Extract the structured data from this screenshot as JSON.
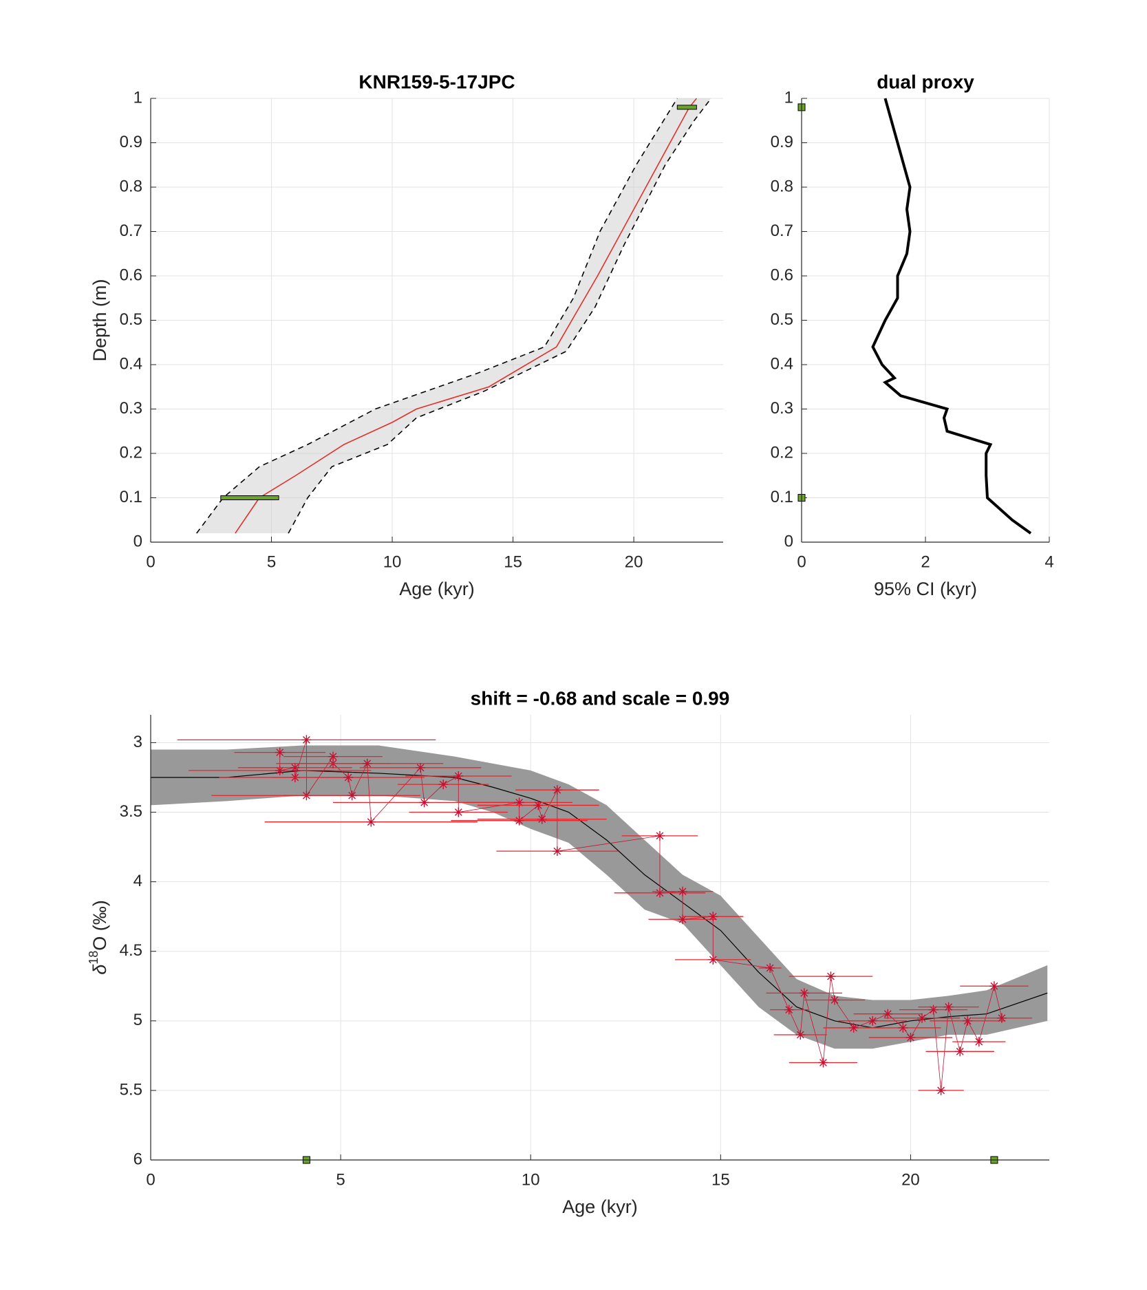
{
  "chart_data": [
    {
      "type": "line",
      "title": "KNR159-5-17JPC",
      "x_label": "Age (kyr)",
      "y_label": "Depth (m)",
      "xlim": [
        0,
        23.7
      ],
      "xticks": [
        0,
        5,
        10,
        15,
        20
      ],
      "ylim": [
        0,
        1
      ],
      "yticks": [
        0,
        0.1,
        0.2,
        0.3,
        0.4,
        0.5,
        0.6,
        0.7,
        0.8,
        0.9,
        1
      ],
      "grid": true,
      "band_color": "#c8c8c8",
      "series": [
        {
          "color": "#000000",
          "dashed": true,
          "x": [
            1.9,
            3,
            4.5,
            6.5,
            9.3,
            13.5,
            16.3,
            17.5,
            18.6,
            20.1,
            21.8
          ],
          "y": [
            0.02,
            0.1,
            0.17,
            0.22,
            0.3,
            0.38,
            0.44,
            0.55,
            0.7,
            0.85,
            1
          ]
        },
        {
          "color": "#000000",
          "dashed": true,
          "x": [
            5.7,
            6.5,
            7.5,
            9.8,
            11,
            13.8,
            17.2,
            18.4,
            19.6,
            21.3,
            22.5,
            23.2
          ],
          "y": [
            0.02,
            0.1,
            0.17,
            0.22,
            0.28,
            0.34,
            0.43,
            0.53,
            0.67,
            0.85,
            0.95,
            1
          ]
        },
        {
          "color": "#e0302a",
          "dashed": false,
          "x": [
            3.5,
            4.5,
            6,
            8,
            10,
            11,
            14,
            16.8,
            18.5,
            20,
            21.5,
            22.3,
            22.6
          ],
          "y": [
            0.02,
            0.1,
            0.15,
            0.22,
            0.27,
            0.3,
            0.35,
            0.44,
            0.6,
            0.75,
            0.9,
            0.98,
            1
          ]
        }
      ],
      "dates": {
        "color": "#6aa329",
        "x": [
          4.1,
          22.2
        ],
        "y": [
          0.1,
          0.98
        ],
        "xerr": [
          1.2,
          0.4
        ]
      }
    },
    {
      "type": "line",
      "title": "dual proxy",
      "x_label": "95% CI (kyr)",
      "xlim": [
        0,
        4
      ],
      "xticks": [
        0,
        2,
        4
      ],
      "ylim": [
        0,
        1
      ],
      "yticks": [
        0,
        0.1,
        0.2,
        0.3,
        0.4,
        0.5,
        0.6,
        0.7,
        0.8,
        0.9,
        1
      ],
      "grid": true,
      "series": [
        {
          "color": "#000000",
          "dashed": false,
          "width": 4,
          "x": [
            3.7,
            3.4,
            3.0,
            2.98,
            2.98,
            3.05,
            2.35,
            2.3,
            2.35,
            1.6,
            1.35,
            1.5,
            1.3,
            1.15,
            1.35,
            1.55,
            1.55,
            1.7,
            1.75,
            1.7,
            1.75,
            1.65,
            1.55,
            1.45,
            1.35
          ],
          "y": [
            0.02,
            0.05,
            0.1,
            0.15,
            0.2,
            0.22,
            0.25,
            0.28,
            0.3,
            0.33,
            0.36,
            0.37,
            0.4,
            0.44,
            0.5,
            0.55,
            0.6,
            0.65,
            0.7,
            0.75,
            0.8,
            0.85,
            0.9,
            0.95,
            1.0
          ]
        }
      ],
      "dates": {
        "color": "#6aa329",
        "x": [
          0,
          0
        ],
        "y": [
          0.1,
          0.98
        ]
      }
    },
    {
      "type": "line",
      "title": "shift = -0.68 and scale = 0.99",
      "x_label": "Age (kyr)",
      "y_label": [
        "δ",
        "18",
        "O (‰)"
      ],
      "xlim": [
        0,
        23.65
      ],
      "xticks": [
        0,
        5,
        10,
        15,
        20
      ],
      "ylim": [
        2.8,
        6
      ],
      "yticks": [
        3,
        3.5,
        4,
        4.5,
        5,
        5.5,
        6
      ],
      "y_reversed": true,
      "grid": true,
      "band": {
        "color": "#999999",
        "x": [
          0,
          2,
          4,
          6,
          8,
          9,
          10,
          11,
          12,
          13,
          14,
          15,
          16,
          17,
          18,
          19,
          20,
          21,
          22,
          23.6
        ],
        "lower": [
          3.05,
          3.05,
          3.02,
          3.02,
          3.1,
          3.15,
          3.2,
          3.3,
          3.45,
          3.7,
          3.95,
          4.1,
          4.4,
          4.7,
          4.82,
          4.85,
          4.85,
          4.82,
          4.78,
          4.6
        ],
        "upper": [
          3.45,
          3.42,
          3.38,
          3.38,
          3.42,
          3.5,
          3.62,
          3.72,
          3.95,
          4.2,
          4.3,
          4.6,
          4.9,
          5.1,
          5.2,
          5.2,
          5.15,
          5.1,
          5.1,
          5.0
        ]
      },
      "series": [
        {
          "color": "#000000",
          "dashed": false,
          "width": 1.2,
          "x": [
            0,
            2,
            4,
            6,
            8,
            9,
            10,
            11,
            12,
            13,
            14,
            15,
            16,
            17,
            18,
            19,
            20,
            21,
            22,
            23.6
          ],
          "y": [
            3.25,
            3.25,
            3.2,
            3.22,
            3.25,
            3.32,
            3.4,
            3.5,
            3.7,
            3.95,
            4.15,
            4.35,
            4.65,
            4.9,
            5.0,
            5.05,
            5.0,
            4.97,
            4.95,
            4.8
          ]
        }
      ],
      "points": {
        "color": "#c8102e",
        "x": [
          3.4,
          3.4,
          3.8,
          3.8,
          4.1,
          4.1,
          4.8,
          4.8,
          5.2,
          5.3,
          5.7,
          5.8,
          7.1,
          7.2,
          7.7,
          8.1,
          8.1,
          9.7,
          9.7,
          10.2,
          10.3,
          10.7,
          10.7,
          13.4,
          13.4,
          14.0,
          14.0,
          14.8,
          14.8,
          16.3,
          16.8,
          17.1,
          17.2,
          17.7,
          17.9,
          18.0,
          18.5,
          19.0,
          19.4,
          19.8,
          20.0,
          20.3,
          20.6,
          20.8,
          21.0,
          21.3,
          21.5,
          21.8,
          22.2,
          22.4
        ],
        "y": [
          3.07,
          3.2,
          3.18,
          3.25,
          2.98,
          3.38,
          3.1,
          3.15,
          3.25,
          3.38,
          3.15,
          3.57,
          3.18,
          3.43,
          3.3,
          3.24,
          3.5,
          3.43,
          3.56,
          3.45,
          3.55,
          3.34,
          3.78,
          3.67,
          4.08,
          4.07,
          4.27,
          4.25,
          4.56,
          4.62,
          4.92,
          5.1,
          4.8,
          5.3,
          4.68,
          4.85,
          5.05,
          5.0,
          4.95,
          5.05,
          5.12,
          4.98,
          4.92,
          5.5,
          4.9,
          5.22,
          5.0,
          5.15,
          4.75,
          4.98
        ],
        "xerr": [
          1.2,
          2.4,
          1.5,
          2.0,
          3.4,
          2.5,
          1.3,
          1.5,
          2.0,
          1.8,
          2.0,
          2.8,
          1.6,
          2.4,
          1.2,
          1.4,
          1.3,
          1.4,
          1.8,
          1.6,
          1.7,
          1.1,
          1.6,
          1.0,
          1.2,
          0.8,
          0.9,
          0.8,
          1.0,
          0.3,
          0.5,
          0.7,
          1.0,
          0.9,
          1.1,
          0.8,
          0.8,
          0.9,
          0.9,
          1.0,
          1.1,
          1.0,
          0.9,
          0.6,
          0.8,
          0.9,
          1.0,
          0.7,
          0.9,
          0.8
        ]
      },
      "dates": {
        "color": "#6aa329",
        "x": [
          4.1,
          22.2
        ],
        "y": [
          6,
          6
        ]
      }
    }
  ]
}
